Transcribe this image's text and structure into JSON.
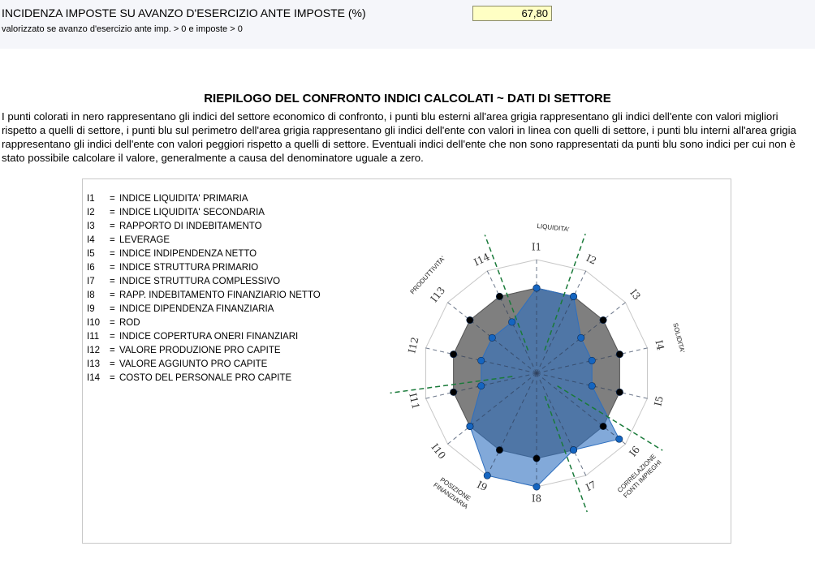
{
  "header": {
    "label": "INCIDENZA IMPOSTE SU AVANZO D'ESERCIZIO ANTE IMPOSTE (%)",
    "value": "67,80",
    "note": "valorizzato se avanzo d'esercizio ante imp. > 0 e imposte > 0"
  },
  "section": {
    "title": "RIEPILOGO DEL CONFRONTO INDICI CALCOLATI ~ DATI DI SETTORE",
    "description": "I punti colorati in nero rappresentano gli indici del settore economico di confronto, i punti blu esterni all'area grigia rappresentano gli indici dell'ente con valori migliori rispetto a quelli di settore, i punti blu sul perimetro dell'area grigia rappresentano gli indici dell'ente con valori in linea con quelli di settore, i punti blu interni all'area grigia rappresentano gli indici dell'ente con valori peggiori rispetto a quelli di settore. Eventuali indici dell'ente che non sono rappresentati da punti blu sono indici per cui non è stato possibile calcolare il valore, generalmente a causa del denominatore uguale a zero."
  },
  "legend": [
    {
      "code": "I1",
      "label": "INDICE LIQUIDITA' PRIMARIA"
    },
    {
      "code": "I2",
      "label": "INDICE LIQUIDITA' SECONDARIA"
    },
    {
      "code": "I3",
      "label": "RAPPORTO DI INDEBITAMENTO"
    },
    {
      "code": "I4",
      "label": "LEVERAGE"
    },
    {
      "code": "I5",
      "label": "INDICE INDIPENDENZA NETTO"
    },
    {
      "code": "I6",
      "label": "INDICE STRUTTURA PRIMARIO"
    },
    {
      "code": "I7",
      "label": "INDICE STRUTTURA COMPLESSIVO"
    },
    {
      "code": "I8",
      "label": "RAPP. INDEBITAMENTO FINANZIARIO NETTO"
    },
    {
      "code": "I9",
      "label": "INDICE DIPENDENZA FINANZIARIA"
    },
    {
      "code": "I10",
      "label": "ROD"
    },
    {
      "code": "I11",
      "label": "INDICE COPERTURA ONERI FINANZIARI"
    },
    {
      "code": "I12",
      "label": "VALORE PRODUZIONE PRO CAPITE"
    },
    {
      "code": "I13",
      "label": "VALORE AGGIUNTO PRO CAPITE"
    },
    {
      "code": "I14",
      "label": "COSTO DEL PERSONALE PRO CAPITE"
    }
  ],
  "chart_data": {
    "type": "radar",
    "categories": [
      "I1",
      "I2",
      "I3",
      "I4",
      "I5",
      "I6",
      "I7",
      "I8",
      "I9",
      "I10",
      "I11",
      "I12",
      "I13",
      "I14"
    ],
    "grid_levels": 4,
    "series": [
      {
        "values": [
          0.75,
          0.75,
          0.75,
          0.75,
          0.75,
          0.75,
          0.75,
          0.75,
          0.75,
          0.75,
          0.75,
          0.75,
          0.75,
          0.75
        ],
        "color": "#7f7f7f",
        "marker": "#000000"
      },
      {
        "values": [
          0.75,
          0.75,
          0.5,
          0.5,
          0.5,
          0.93,
          0.75,
          1.0,
          1.0,
          0.75,
          0.5,
          0.5,
          0.5,
          0.5
        ],
        "color": "#2e6fbf",
        "marker": "#1565c0"
      }
    ],
    "groups": [
      {
        "label": "LIQUIDITA'",
        "angle": 6.5
      },
      {
        "label": "SOLIDITA'",
        "angle": 76
      },
      {
        "label": "CORRELAZIONE|FONTI IMPIEGHI",
        "angle": 135
      },
      {
        "label": "POSIZIONE|FINANZIARIA",
        "angle": 215
      },
      {
        "label": "PRODUTTIVITA'",
        "angle": 312
      }
    ],
    "separators": [
      19.3,
      121.5,
      160,
      262.3,
      339.5
    ],
    "separator_color": "#1a7a3a"
  }
}
